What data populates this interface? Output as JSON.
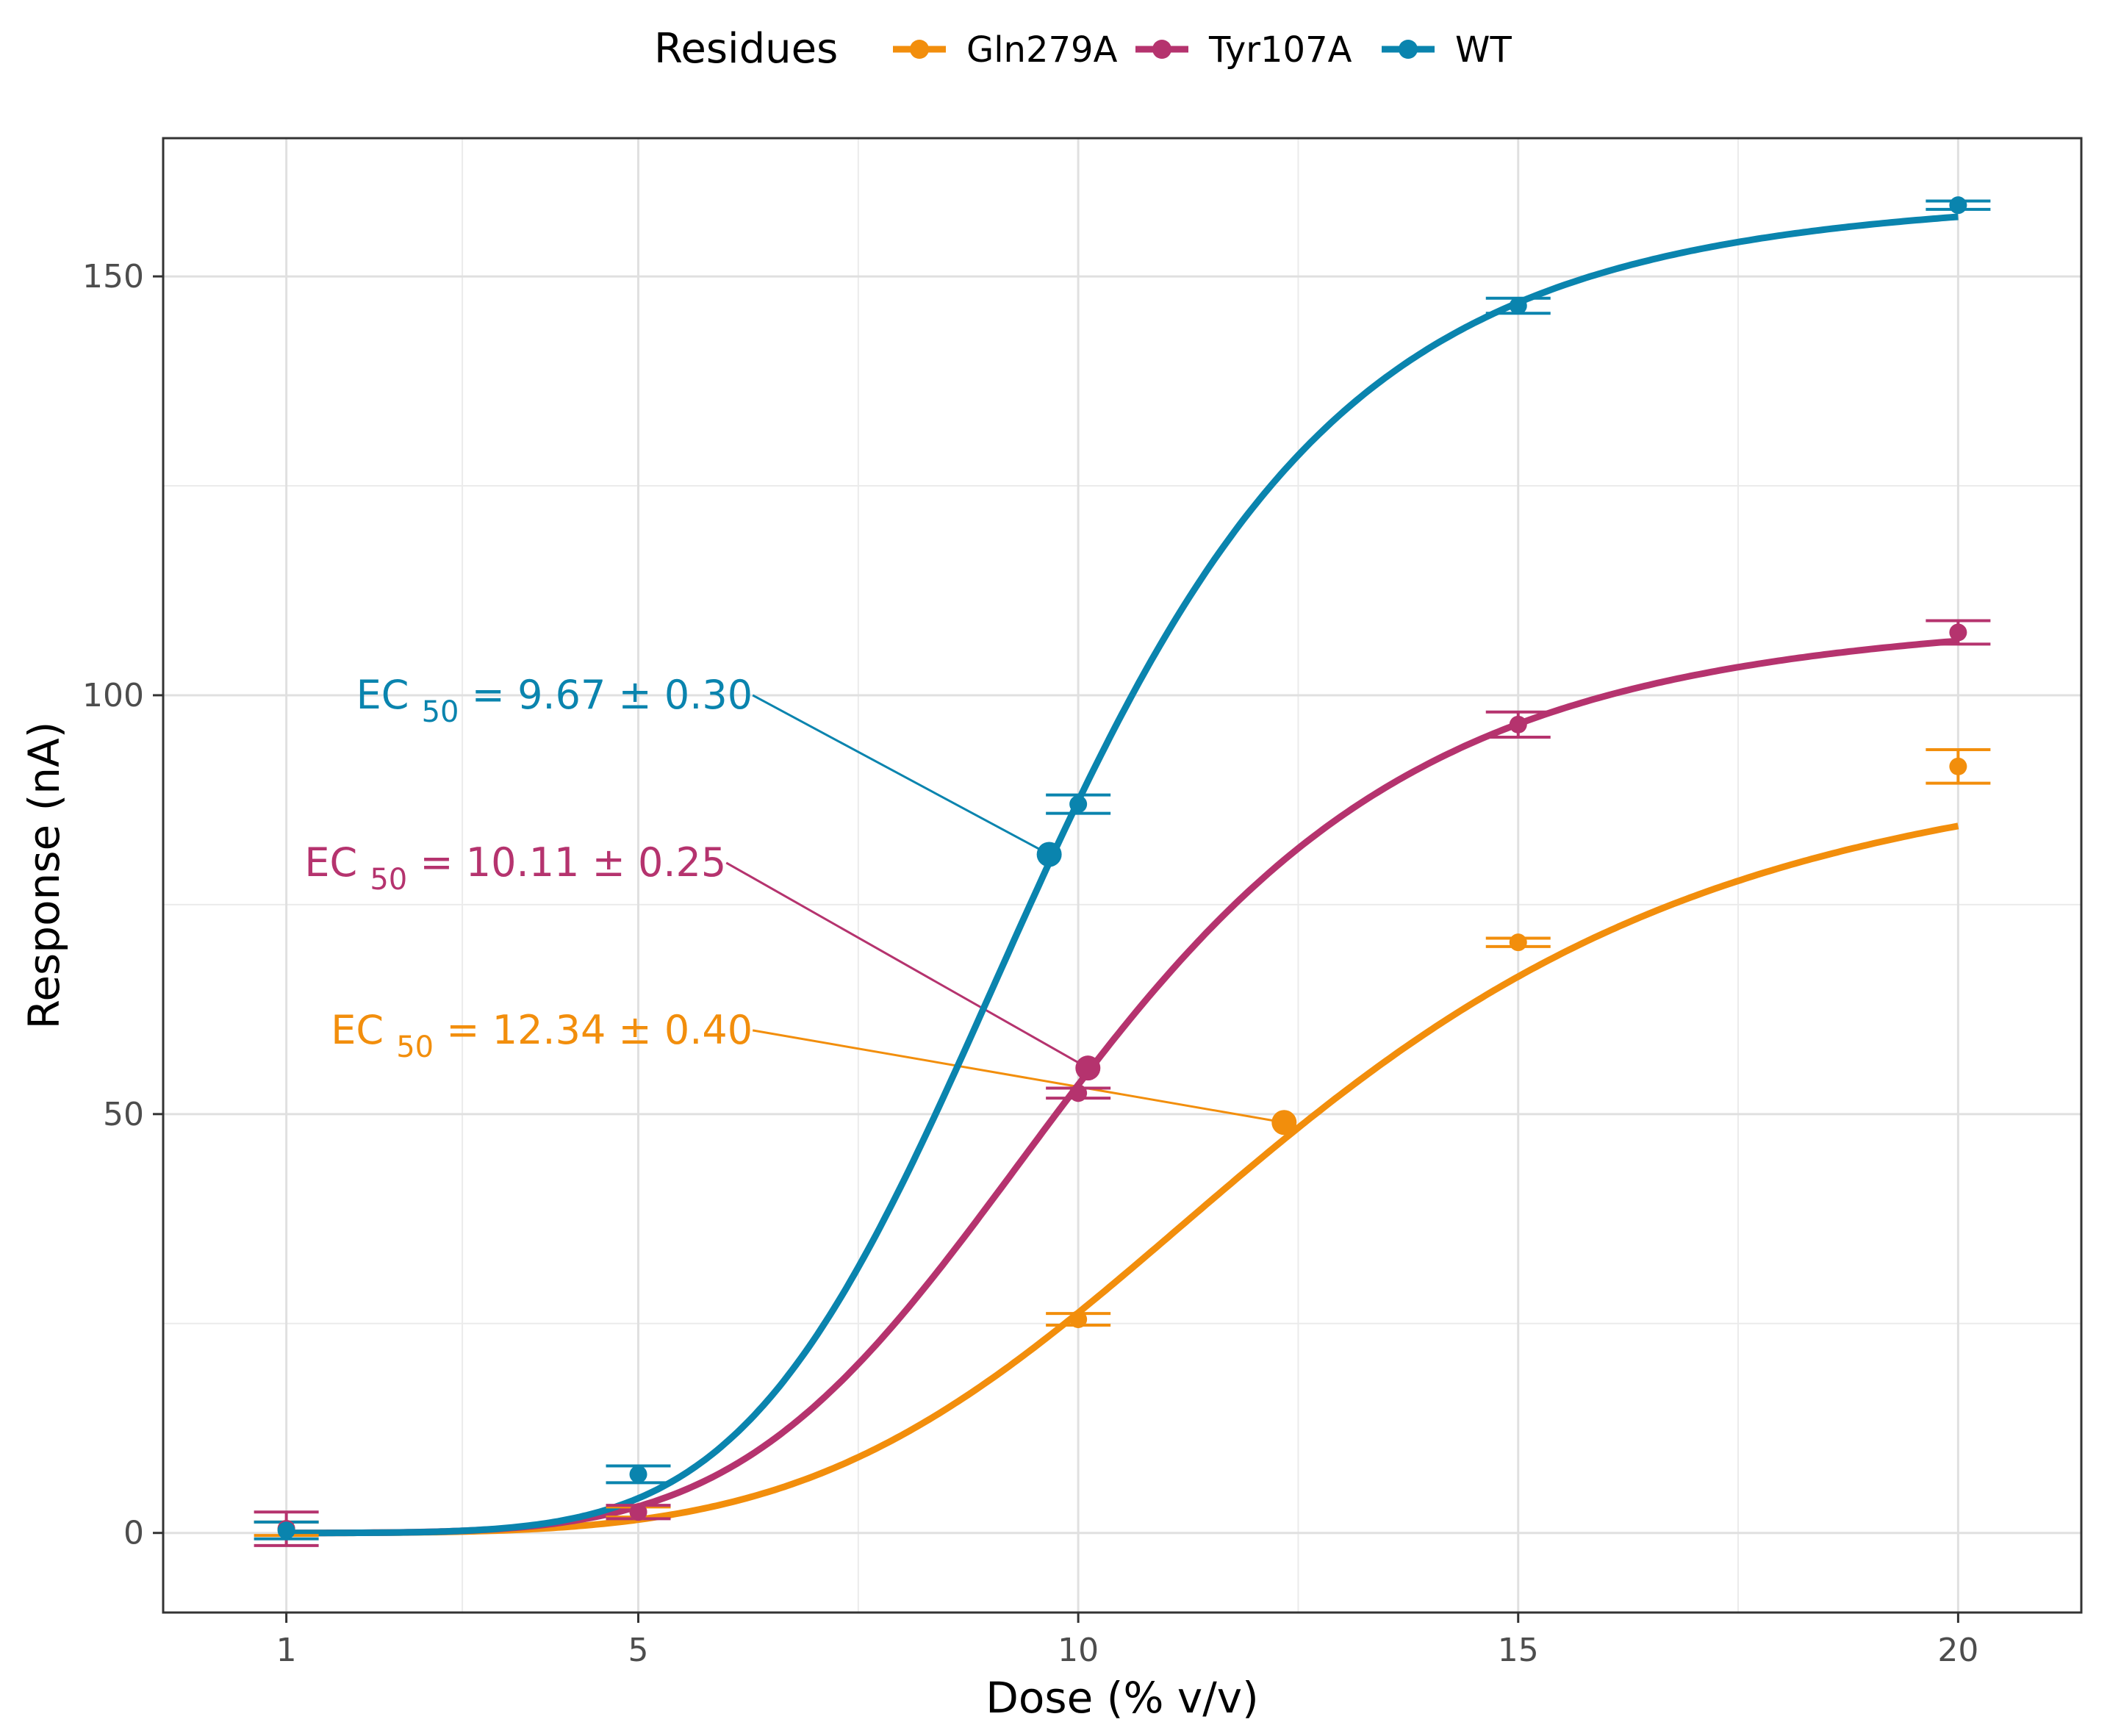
{
  "chart_data": {
    "type": "line",
    "title": "",
    "xlabel": "Dose (% v/v)",
    "ylabel": "Response (nA)",
    "xlim": [
      -0.4,
      21.4
    ],
    "ylim": [
      -9.5,
      166.5
    ],
    "x_ticks": [
      1,
      5,
      10,
      15,
      20
    ],
    "x_tick_labels": [
      "1",
      "5",
      "10",
      "15",
      "20"
    ],
    "y_ticks": [
      0,
      50,
      100,
      150
    ],
    "y_tick_labels": [
      "0",
      "50",
      "100",
      "150"
    ],
    "x_minor_grid": [
      3,
      7.5,
      12.5,
      17.5
    ],
    "y_minor_grid": [
      25,
      75,
      125
    ],
    "grid": true,
    "legend": {
      "title": "Residues",
      "position": "top",
      "entries": [
        "Gln279A",
        "Tyr107A",
        "WT"
      ]
    },
    "series": [
      {
        "name": "Gln279A",
        "color": "#F28E0C",
        "top": 94,
        "ec50": 12.34,
        "hill": 4.5,
        "points": [
          {
            "x": 1,
            "y": 0.5,
            "err": 0.8
          },
          {
            "x": 5,
            "y": 2.5,
            "err": 0.6
          },
          {
            "x": 10,
            "y": 25.5,
            "err": 0.7
          },
          {
            "x": 15,
            "y": 70.5,
            "err": 0.5
          },
          {
            "x": 20,
            "y": 91.5,
            "err": 2.0
          }
        ],
        "ec50_point": {
          "x": 12.34,
          "y": 49
        },
        "annotation": {
          "prefix": "EC",
          "subscript": "50",
          "value": "= 12.34",
          "pm": "± 0.40",
          "anchor_x": 6.3,
          "anchor_y": 60
        }
      },
      {
        "name": "Tyr107A",
        "color": "#B5336E",
        "top": 110,
        "ec50": 10.11,
        "hill": 5.0,
        "points": [
          {
            "x": 1,
            "y": 0.5,
            "err": 2.0
          },
          {
            "x": 5,
            "y": 2.5,
            "err": 0.8
          },
          {
            "x": 10,
            "y": 52.5,
            "err": 0.6
          },
          {
            "x": 15,
            "y": 96.5,
            "err": 1.5
          },
          {
            "x": 20,
            "y": 107.5,
            "err": 1.4
          }
        ],
        "ec50_point": {
          "x": 10.11,
          "y": 55.5
        },
        "annotation": {
          "prefix": "EC",
          "subscript": "50",
          "value": "= 10.11",
          "pm": "± 0.25",
          "anchor_x": 6.0,
          "anchor_y": 80
        }
      },
      {
        "name": "WT",
        "color": "#0A84AE",
        "top": 160,
        "ec50": 9.67,
        "hill": 5.5,
        "points": [
          {
            "x": 1,
            "y": 0.3,
            "err": 1.0
          },
          {
            "x": 5,
            "y": 7,
            "err": 1.0
          },
          {
            "x": 10,
            "y": 87,
            "err": 1.1
          },
          {
            "x": 15,
            "y": 146.5,
            "err": 0.9
          },
          {
            "x": 20,
            "y": 158.5,
            "err": 0.5
          }
        ],
        "ec50_point": {
          "x": 9.67,
          "y": 81
        },
        "annotation": {
          "prefix": "EC",
          "subscript": "50",
          "value": "= 9.67",
          "pm": "± 0.30",
          "anchor_x": 6.3,
          "anchor_y": 100
        }
      }
    ]
  }
}
